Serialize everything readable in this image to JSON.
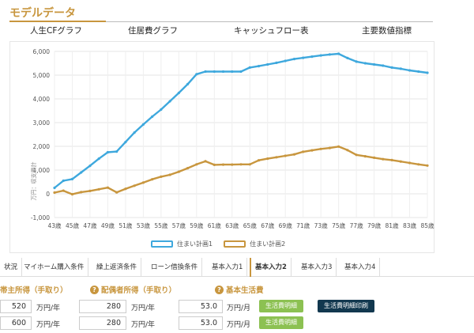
{
  "section": {
    "title": "モデルデータ"
  },
  "top_tabs": [
    "人生CFグラフ",
    "住居費グラフ",
    "キャッシュフロー表",
    "主要数値指標"
  ],
  "chart_data": {
    "type": "line",
    "ylabel": "万円：収支累計",
    "ylim": [
      -1000,
      6000
    ],
    "yticks": [
      -1000,
      0,
      1000,
      2000,
      3000,
      4000,
      5000,
      6000
    ],
    "ytick_labels": [
      "-1,000",
      "0",
      "1,000",
      "2,000",
      "3,000",
      "4,000",
      "5,000",
      "6,000"
    ],
    "x": [
      43,
      44,
      45,
      46,
      47,
      48,
      49,
      50,
      51,
      52,
      53,
      54,
      55,
      56,
      57,
      58,
      59,
      60,
      61,
      62,
      63,
      64,
      65,
      66,
      67,
      68,
      69,
      70,
      71,
      72,
      73,
      74,
      75,
      76,
      77,
      78,
      79,
      80,
      81,
      82,
      83,
      84,
      85
    ],
    "xtick_labels": [
      "43歳",
      "45歳",
      "47歳",
      "49歳",
      "51歳",
      "53歳",
      "55歳",
      "57歳",
      "59歳",
      "61歳",
      "63歳",
      "65歳",
      "67歳",
      "69歳",
      "71歳",
      "73歳",
      "75歳",
      "77歳",
      "79歳",
      "81歳",
      "83歳",
      "85歳"
    ],
    "grid": true,
    "legend_position": "bottom",
    "series": [
      {
        "name": "住まい計画1",
        "color": "#3ea8dd",
        "values": [
          250,
          550,
          620,
          900,
          1180,
          1480,
          1750,
          1780,
          2180,
          2580,
          2920,
          3250,
          3550,
          3900,
          4250,
          4620,
          5040,
          5150,
          5150,
          5150,
          5150,
          5150,
          5320,
          5380,
          5450,
          5520,
          5600,
          5680,
          5730,
          5780,
          5830,
          5870,
          5900,
          5720,
          5570,
          5500,
          5450,
          5400,
          5320,
          5270,
          5200,
          5150,
          5100
        ]
      },
      {
        "name": "住まい計画2",
        "color": "#c8963e",
        "values": [
          50,
          130,
          -20,
          70,
          120,
          190,
          260,
          60,
          210,
          340,
          470,
          610,
          720,
          800,
          930,
          1080,
          1240,
          1370,
          1220,
          1230,
          1230,
          1240,
          1240,
          1410,
          1480,
          1540,
          1600,
          1660,
          1770,
          1830,
          1890,
          1930,
          1990,
          1840,
          1640,
          1580,
          1520,
          1460,
          1420,
          1360,
          1300,
          1240,
          1190
        ]
      }
    ]
  },
  "bottom_tabs": [
    "状況",
    "マイホーム購入条件",
    "繰上返済条件",
    "ローン借換条件",
    "基本入力1",
    "基本入力2",
    "基本入力3",
    "基本入力4"
  ],
  "bottom_tabs_active": "基本入力2",
  "form": {
    "label_head": "帯主所得（手取り）",
    "label_spouse": "配偶者所得（手取り）",
    "label_living": "基本生活費",
    "help_icon": "?",
    "rows": [
      {
        "head": "520",
        "head_unit": "万円/年",
        "spouse": "280",
        "spouse_unit": "万円/年",
        "living": "53.0",
        "living_unit": "万円/月",
        "detail_btn": "生活費明細",
        "print_btn": "生活費明細印刷"
      },
      {
        "head": "600",
        "head_unit": "万円/年",
        "spouse": "280",
        "spouse_unit": "万円/年",
        "living": "53.0",
        "living_unit": "万円/月",
        "detail_btn": "生活費明細"
      }
    ]
  }
}
